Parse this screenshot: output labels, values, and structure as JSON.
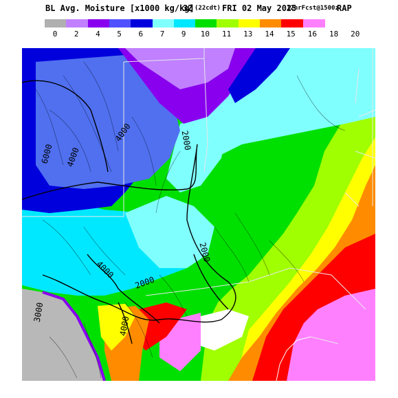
{
  "title": {
    "product": "BL Avg. Moisture [x1000 kg/kg]",
    "hour": "3Z",
    "local": "(22cdt)",
    "date": "FRI 02 May 2025",
    "forecast": "12hrFcst@1500z",
    "model": "RAP"
  },
  "legend": {
    "ticks": [
      "0",
      "2",
      "4",
      "5",
      "6",
      "7",
      "9",
      "10",
      "11",
      "13",
      "14",
      "15",
      "16",
      "18",
      "20"
    ],
    "colors": [
      "#b0b0b0",
      "#c080ff",
      "#8800ee",
      "#5050ff",
      "#0000dd",
      "#80ffff",
      "#00e8ff",
      "#00e000",
      "#a0ff00",
      "#ffff00",
      "#ff8c00",
      "#ff0000",
      "#ff80ff"
    ]
  },
  "map": {
    "contour_labels": [
      "6000",
      "4000",
      "4000",
      "2000",
      "4000",
      "2000",
      "2000",
      "3000",
      "4000"
    ],
    "colors": {
      "terrain_below": "#b8b8b8",
      "lavender": "#c080ff",
      "purple": "#8800ee",
      "slate_blue": "#5070f0",
      "blue": "#0000dd",
      "cyan_light": "#80ffff",
      "cyan": "#00e8ff",
      "green": "#00e000",
      "lime": "#a0ff00",
      "yellow": "#ffff00",
      "orange": "#ff8c00",
      "red": "#ff0000",
      "pink": "#ff80ff",
      "white": "#ffffff"
    }
  }
}
